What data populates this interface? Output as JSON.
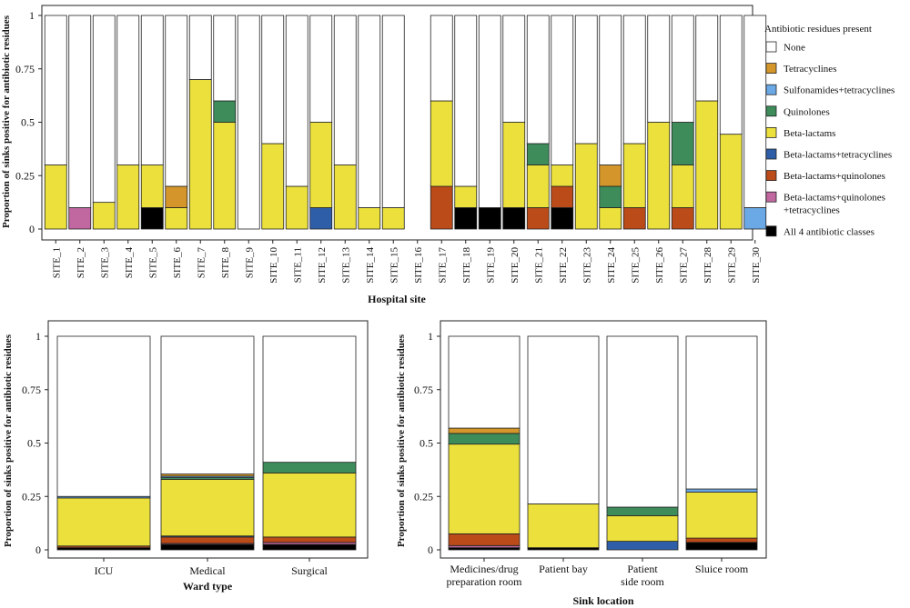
{
  "legend": {
    "title": "Antibiotic residues present",
    "items": [
      {
        "key": "none",
        "label": "None",
        "color": "#ffffff"
      },
      {
        "key": "tet",
        "label": "Tetracyclines",
        "color": "#d4962a"
      },
      {
        "key": "sul",
        "label": "Sulfonamides+tetracyclines",
        "color": "#6aa9e6"
      },
      {
        "key": "quin",
        "label": "Quinolones",
        "color": "#3d8c5a"
      },
      {
        "key": "beta",
        "label": "Beta-lactams",
        "color": "#ebe03c"
      },
      {
        "key": "bt",
        "label": "Beta-lactams+tetracyclines",
        "color": "#2f5ea8"
      },
      {
        "key": "bq",
        "label": "Beta-lactams+quinolones",
        "color": "#bb4b18"
      },
      {
        "key": "bqt",
        "label": "Beta-lactams+quinolones\n+tetracyclines",
        "color": "#c168a0"
      },
      {
        "key": "all4",
        "label": "All 4 antibiotic classes",
        "color": "#000000"
      }
    ]
  },
  "chart_data": [
    {
      "type": "bar",
      "stacked": true,
      "title": "",
      "xlabel": "Hospital site",
      "ylabel": "Proportion of sinks positive for antibiotic residues",
      "ylim": [
        0,
        1
      ],
      "yticks": [
        "0",
        "0.25",
        "0.5",
        "0.75",
        "1"
      ],
      "categories": [
        "SITE_1",
        "SITE_2",
        "SITE_3",
        "SITE_4",
        "SITE_5",
        "SITE_6",
        "SITE_7",
        "SITE_8",
        "SITE_9",
        "SITE_10",
        "SITE_11",
        "SITE_12",
        "SITE_13",
        "SITE_14",
        "SITE_15",
        "SITE_16",
        "SITE_17",
        "SITE_18",
        "SITE_19",
        "SITE_20",
        "SITE_21",
        "SITE_22",
        "SITE_23",
        "SITE_24",
        "SITE_25",
        "SITE_26",
        "SITE_27",
        "SITE_28",
        "SITE_29",
        "SITE_30"
      ],
      "series": [
        {
          "name": "All 4 antibiotic classes",
          "key": "all4",
          "values": [
            0,
            0,
            0,
            0,
            0.1,
            0,
            0,
            0,
            0,
            0,
            0,
            0,
            0,
            0,
            0,
            0,
            0,
            0.1,
            0.1,
            0.1,
            0,
            0.1,
            0,
            0,
            0,
            0,
            0,
            0,
            0,
            0
          ]
        },
        {
          "name": "Beta-lactams+quinolones+tetracyclines",
          "key": "bqt",
          "values": [
            0,
            0.1,
            0,
            0,
            0,
            0,
            0,
            0,
            0,
            0,
            0,
            0,
            0,
            0,
            0,
            0,
            0,
            0,
            0,
            0,
            0,
            0,
            0,
            0,
            0,
            0,
            0,
            0,
            0,
            0
          ]
        },
        {
          "name": "Beta-lactams+quinolones",
          "key": "bq",
          "values": [
            0,
            0,
            0,
            0,
            0,
            0,
            0,
            0,
            0,
            0,
            0,
            0,
            0,
            0,
            0,
            0,
            0.2,
            0,
            0,
            0,
            0.1,
            0.1,
            0,
            0,
            0.1,
            0,
            0.1,
            0,
            0,
            0
          ]
        },
        {
          "name": "Beta-lactams+tetracyclines",
          "key": "bt",
          "values": [
            0,
            0,
            0,
            0,
            0,
            0,
            0,
            0,
            0,
            0,
            0,
            0.1,
            0,
            0,
            0,
            0,
            0,
            0,
            0,
            0,
            0,
            0,
            0,
            0,
            0,
            0,
            0,
            0,
            0,
            0
          ]
        },
        {
          "name": "Beta-lactams",
          "key": "beta",
          "values": [
            0.3,
            0,
            0.125,
            0.3,
            0.2,
            0.1,
            0.7,
            0.5,
            0,
            0.4,
            0.2,
            0.4,
            0.3,
            0.1,
            0.1,
            0,
            0.4,
            0.1,
            0,
            0.4,
            0.2,
            0.1,
            0.4,
            0.1,
            0.3,
            0.5,
            0.2,
            0.6,
            0.444,
            0
          ]
        },
        {
          "name": "Quinolones",
          "key": "quin",
          "values": [
            0,
            0,
            0,
            0,
            0,
            0,
            0,
            0.1,
            0,
            0,
            0,
            0,
            0,
            0,
            0,
            0,
            0,
            0,
            0,
            0,
            0.1,
            0,
            0,
            0.1,
            0,
            0,
            0.2,
            0,
            0,
            0
          ]
        },
        {
          "name": "Sulfonamides+tetracyclines",
          "key": "sul",
          "values": [
            0,
            0,
            0,
            0,
            0,
            0,
            0,
            0,
            0,
            0,
            0,
            0,
            0,
            0,
            0,
            0,
            0,
            0,
            0,
            0,
            0,
            0,
            0,
            0,
            0,
            0,
            0,
            0,
            0,
            0.1
          ]
        },
        {
          "name": "Tetracyclines",
          "key": "tet",
          "values": [
            0,
            0,
            0,
            0,
            0,
            0.1,
            0,
            0,
            0,
            0,
            0,
            0,
            0,
            0,
            0,
            0,
            0,
            0,
            0,
            0,
            0,
            0,
            0,
            0.1,
            0,
            0,
            0,
            0,
            0,
            0
          ]
        },
        {
          "name": "None",
          "key": "none",
          "values": [
            0.7,
            0.9,
            0.875,
            0.7,
            0.7,
            0.8,
            0.3,
            0.4,
            1,
            0.6,
            0.8,
            0.5,
            0.7,
            0.9,
            0.9,
            0,
            0.4,
            0.8,
            0.9,
            0.5,
            0.6,
            0.7,
            0.6,
            0.7,
            0.6,
            0.5,
            0.5,
            0.4,
            0.556,
            0.9
          ]
        }
      ]
    },
    {
      "type": "bar",
      "stacked": true,
      "title": "",
      "xlabel": "Ward type",
      "ylabel": "Proportion of sinks positive for antibiotic residues",
      "ylim": [
        0,
        1
      ],
      "yticks": [
        "0",
        "0.25",
        "0.5",
        "0.75",
        "1"
      ],
      "categories": [
        "ICU",
        "Medical",
        "Surgical"
      ],
      "series": [
        {
          "name": "All 4 antibiotic classes",
          "key": "all4",
          "values": [
            0.01,
            0.025,
            0.025
          ]
        },
        {
          "name": "Beta-lactams+quinolones+tetracyclines",
          "key": "bqt",
          "values": [
            0,
            0.005,
            0.01
          ]
        },
        {
          "name": "Beta-lactams+quinolones",
          "key": "bq",
          "values": [
            0.008,
            0.03,
            0.025
          ]
        },
        {
          "name": "Beta-lactams+tetracyclines",
          "key": "bt",
          "values": [
            0,
            0.005,
            0
          ]
        },
        {
          "name": "Beta-lactams",
          "key": "beta",
          "values": [
            0.225,
            0.265,
            0.3
          ]
        },
        {
          "name": "Quinolones",
          "key": "quin",
          "values": [
            0,
            0.008,
            0.05
          ]
        },
        {
          "name": "Sulfonamides+tetracyclines",
          "key": "sul",
          "values": [
            0.007,
            0.007,
            0
          ]
        },
        {
          "name": "Tetracyclines",
          "key": "tet",
          "values": [
            0,
            0.01,
            0
          ]
        },
        {
          "name": "None",
          "key": "none",
          "values": [
            0.75,
            0.645,
            0.59
          ]
        }
      ]
    },
    {
      "type": "bar",
      "stacked": true,
      "title": "",
      "xlabel": "Sink location",
      "ylabel": "Proportion of sinks positive for antibiotic residues",
      "ylim": [
        0,
        1
      ],
      "yticks": [
        "0",
        "0.25",
        "0.5",
        "0.75",
        "1"
      ],
      "categories": [
        "Medicines/drug\npreparation room",
        "Patient bay",
        "Patient\nside room",
        "Sluice room"
      ],
      "series": [
        {
          "name": "All 4 antibiotic classes",
          "key": "all4",
          "values": [
            0.01,
            0.01,
            0,
            0.035
          ]
        },
        {
          "name": "Beta-lactams+quinolones+tetracyclines",
          "key": "bqt",
          "values": [
            0.01,
            0,
            0,
            0
          ]
        },
        {
          "name": "Beta-lactams+quinolones",
          "key": "bq",
          "values": [
            0.055,
            0,
            0,
            0.02
          ]
        },
        {
          "name": "Beta-lactams+tetracyclines",
          "key": "bt",
          "values": [
            0,
            0,
            0.04,
            0
          ]
        },
        {
          "name": "Beta-lactams",
          "key": "beta",
          "values": [
            0.42,
            0.205,
            0.12,
            0.215
          ]
        },
        {
          "name": "Quinolones",
          "key": "quin",
          "values": [
            0.05,
            0,
            0.04,
            0
          ]
        },
        {
          "name": "Sulfonamides+tetracyclines",
          "key": "sul",
          "values": [
            0,
            0,
            0,
            0.015
          ]
        },
        {
          "name": "Tetracyclines",
          "key": "tet",
          "values": [
            0.025,
            0,
            0,
            0
          ]
        },
        {
          "name": "None",
          "key": "none",
          "values": [
            0.43,
            0.785,
            0.8,
            0.715
          ]
        }
      ]
    }
  ]
}
